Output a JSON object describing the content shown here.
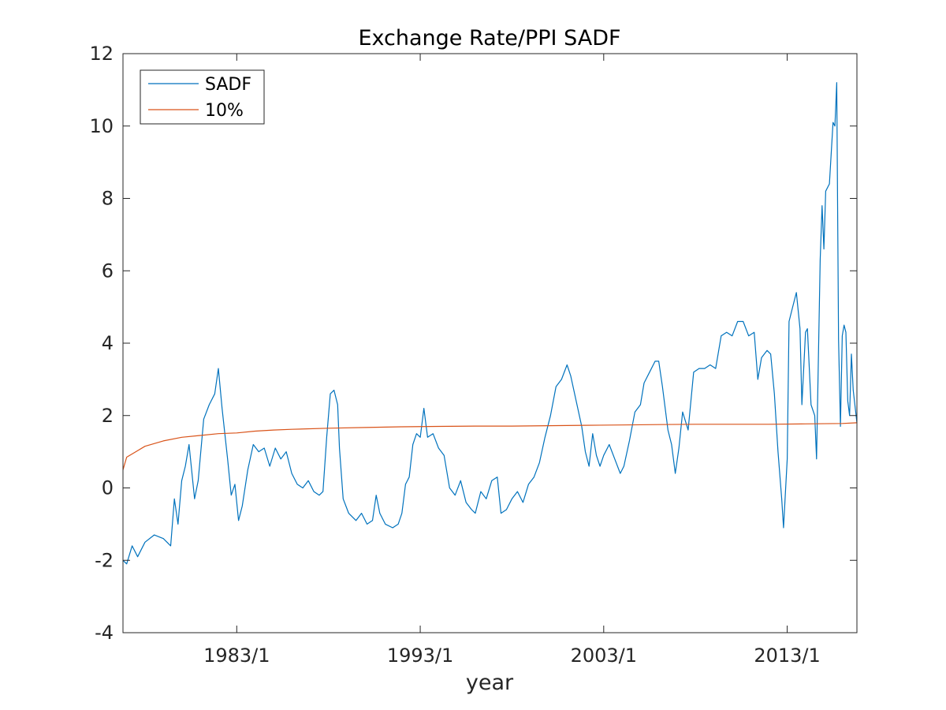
{
  "chart_data": {
    "type": "line",
    "title": "Exchange Rate/PPI SADF",
    "xlabel": "year",
    "ylabel": "",
    "xlim": [
      1976.8,
      2016.8
    ],
    "ylim": [
      -4,
      12
    ],
    "yticks": [
      -4,
      -2,
      0,
      2,
      4,
      6,
      8,
      10,
      12
    ],
    "xticks": [
      {
        "value": 1983.0,
        "label": "1983/1"
      },
      {
        "value": 1993.0,
        "label": "1993/1"
      },
      {
        "value": 2003.0,
        "label": "2003/1"
      },
      {
        "value": 2013.0,
        "label": "2013/1"
      }
    ],
    "legend": {
      "position": "top-left",
      "entries": [
        "SADF",
        "10%"
      ]
    },
    "grid": false,
    "series": [
      {
        "name": "SADF",
        "color": "#0072BD",
        "points": [
          [
            1976.8,
            -2.0
          ],
          [
            1977.0,
            -2.1
          ],
          [
            1977.3,
            -1.6
          ],
          [
            1977.6,
            -1.9
          ],
          [
            1978.0,
            -1.5
          ],
          [
            1978.5,
            -1.3
          ],
          [
            1979.0,
            -1.4
          ],
          [
            1979.4,
            -1.6
          ],
          [
            1979.6,
            -0.3
          ],
          [
            1979.8,
            -1.0
          ],
          [
            1980.0,
            0.2
          ],
          [
            1980.2,
            0.6
          ],
          [
            1980.4,
            1.2
          ],
          [
            1980.7,
            -0.3
          ],
          [
            1980.9,
            0.2
          ],
          [
            1981.2,
            1.9
          ],
          [
            1981.5,
            2.3
          ],
          [
            1981.8,
            2.6
          ],
          [
            1982.0,
            3.3
          ],
          [
            1982.2,
            2.2
          ],
          [
            1982.5,
            0.8
          ],
          [
            1982.7,
            -0.2
          ],
          [
            1982.9,
            0.1
          ],
          [
            1983.1,
            -0.9
          ],
          [
            1983.3,
            -0.5
          ],
          [
            1983.6,
            0.5
          ],
          [
            1983.9,
            1.2
          ],
          [
            1984.2,
            1.0
          ],
          [
            1984.5,
            1.1
          ],
          [
            1984.8,
            0.6
          ],
          [
            1985.1,
            1.1
          ],
          [
            1985.4,
            0.8
          ],
          [
            1985.7,
            1.0
          ],
          [
            1986.0,
            0.4
          ],
          [
            1986.3,
            0.1
          ],
          [
            1986.6,
            0.0
          ],
          [
            1986.9,
            0.2
          ],
          [
            1987.2,
            -0.1
          ],
          [
            1987.5,
            -0.2
          ],
          [
            1987.7,
            -0.1
          ],
          [
            1987.9,
            1.4
          ],
          [
            1988.1,
            2.6
          ],
          [
            1988.3,
            2.7
          ],
          [
            1988.5,
            2.3
          ],
          [
            1988.6,
            1.1
          ],
          [
            1988.8,
            -0.3
          ],
          [
            1989.1,
            -0.7
          ],
          [
            1989.5,
            -0.9
          ],
          [
            1989.8,
            -0.7
          ],
          [
            1990.1,
            -1.0
          ],
          [
            1990.4,
            -0.9
          ],
          [
            1990.6,
            -0.2
          ],
          [
            1990.8,
            -0.7
          ],
          [
            1991.1,
            -1.0
          ],
          [
            1991.5,
            -1.1
          ],
          [
            1991.8,
            -1.0
          ],
          [
            1992.0,
            -0.7
          ],
          [
            1992.2,
            0.1
          ],
          [
            1992.4,
            0.3
          ],
          [
            1992.6,
            1.2
          ],
          [
            1992.8,
            1.5
          ],
          [
            1993.0,
            1.4
          ],
          [
            1993.2,
            2.2
          ],
          [
            1993.4,
            1.4
          ],
          [
            1993.7,
            1.5
          ],
          [
            1994.0,
            1.1
          ],
          [
            1994.3,
            0.9
          ],
          [
            1994.6,
            0.0
          ],
          [
            1994.9,
            -0.2
          ],
          [
            1995.2,
            0.2
          ],
          [
            1995.5,
            -0.4
          ],
          [
            1995.8,
            -0.6
          ],
          [
            1996.0,
            -0.7
          ],
          [
            1996.3,
            -0.1
          ],
          [
            1996.6,
            -0.3
          ],
          [
            1996.9,
            0.2
          ],
          [
            1997.2,
            0.3
          ],
          [
            1997.4,
            -0.7
          ],
          [
            1997.7,
            -0.6
          ],
          [
            1998.0,
            -0.3
          ],
          [
            1998.3,
            -0.1
          ],
          [
            1998.6,
            -0.4
          ],
          [
            1998.9,
            0.1
          ],
          [
            1999.2,
            0.3
          ],
          [
            1999.5,
            0.7
          ],
          [
            1999.8,
            1.4
          ],
          [
            2000.1,
            2.0
          ],
          [
            2000.4,
            2.8
          ],
          [
            2000.7,
            3.0
          ],
          [
            2001.0,
            3.4
          ],
          [
            2001.2,
            3.1
          ],
          [
            2001.5,
            2.4
          ],
          [
            2001.8,
            1.7
          ],
          [
            2002.0,
            1.0
          ],
          [
            2002.2,
            0.6
          ],
          [
            2002.4,
            1.5
          ],
          [
            2002.6,
            0.9
          ],
          [
            2002.8,
            0.6
          ],
          [
            2003.0,
            0.9
          ],
          [
            2003.3,
            1.2
          ],
          [
            2003.6,
            0.8
          ],
          [
            2003.9,
            0.4
          ],
          [
            2004.1,
            0.6
          ],
          [
            2004.4,
            1.3
          ],
          [
            2004.7,
            2.1
          ],
          [
            2005.0,
            2.3
          ],
          [
            2005.2,
            2.9
          ],
          [
            2005.5,
            3.2
          ],
          [
            2005.8,
            3.5
          ],
          [
            2006.0,
            3.5
          ],
          [
            2006.2,
            2.8
          ],
          [
            2006.5,
            1.6
          ],
          [
            2006.7,
            1.2
          ],
          [
            2006.9,
            0.4
          ],
          [
            2007.1,
            1.1
          ],
          [
            2007.3,
            2.1
          ],
          [
            2007.6,
            1.6
          ],
          [
            2007.9,
            3.2
          ],
          [
            2008.2,
            3.3
          ],
          [
            2008.5,
            3.3
          ],
          [
            2008.8,
            3.4
          ],
          [
            2009.1,
            3.3
          ],
          [
            2009.4,
            4.2
          ],
          [
            2009.7,
            4.3
          ],
          [
            2010.0,
            4.2
          ],
          [
            2010.3,
            4.6
          ],
          [
            2010.6,
            4.6
          ],
          [
            2010.9,
            4.2
          ],
          [
            2011.2,
            4.3
          ],
          [
            2011.4,
            3.0
          ],
          [
            2011.6,
            3.6
          ],
          [
            2011.9,
            3.8
          ],
          [
            2012.1,
            3.7
          ],
          [
            2012.3,
            2.6
          ],
          [
            2012.5,
            1.0
          ],
          [
            2012.7,
            -0.3
          ],
          [
            2012.8,
            -1.1
          ],
          [
            2013.0,
            0.8
          ],
          [
            2013.1,
            4.6
          ],
          [
            2013.3,
            5.0
          ],
          [
            2013.5,
            5.4
          ],
          [
            2013.7,
            4.4
          ],
          [
            2013.8,
            2.3
          ],
          [
            2014.0,
            4.3
          ],
          [
            2014.1,
            4.4
          ],
          [
            2014.3,
            2.3
          ],
          [
            2014.5,
            2.0
          ],
          [
            2014.6,
            0.8
          ],
          [
            2014.8,
            6.3
          ],
          [
            2014.9,
            7.8
          ],
          [
            2015.0,
            6.6
          ],
          [
            2015.1,
            8.2
          ],
          [
            2015.3,
            8.4
          ],
          [
            2015.5,
            10.1
          ],
          [
            2015.6,
            10.0
          ],
          [
            2015.7,
            11.2
          ],
          [
            2015.8,
            4.1
          ],
          [
            2015.9,
            1.7
          ],
          [
            2016.0,
            4.2
          ],
          [
            2016.1,
            4.5
          ],
          [
            2016.2,
            4.3
          ],
          [
            2016.3,
            2.4
          ],
          [
            2016.4,
            2.0
          ],
          [
            2016.5,
            3.7
          ],
          [
            2016.6,
            2.7
          ],
          [
            2016.8,
            1.8
          ]
        ]
      },
      {
        "name": "10%",
        "color": "#D95319",
        "points": [
          [
            1976.8,
            0.5
          ],
          [
            1977.0,
            0.85
          ],
          [
            1977.5,
            1.0
          ],
          [
            1978.0,
            1.15
          ],
          [
            1979.0,
            1.3
          ],
          [
            1980.0,
            1.4
          ],
          [
            1981.0,
            1.45
          ],
          [
            1982.0,
            1.5
          ],
          [
            1983.0,
            1.52
          ],
          [
            1984.0,
            1.57
          ],
          [
            1985.0,
            1.6
          ],
          [
            1986.0,
            1.62
          ],
          [
            1988.0,
            1.65
          ],
          [
            1990.0,
            1.67
          ],
          [
            1992.0,
            1.69
          ],
          [
            1994.0,
            1.7
          ],
          [
            1996.0,
            1.71
          ],
          [
            1998.0,
            1.71
          ],
          [
            2000.0,
            1.72
          ],
          [
            2002.0,
            1.73
          ],
          [
            2004.0,
            1.74
          ],
          [
            2006.0,
            1.75
          ],
          [
            2008.0,
            1.76
          ],
          [
            2010.0,
            1.76
          ],
          [
            2012.0,
            1.76
          ],
          [
            2014.0,
            1.77
          ],
          [
            2016.0,
            1.78
          ],
          [
            2016.8,
            1.8
          ]
        ]
      }
    ]
  }
}
